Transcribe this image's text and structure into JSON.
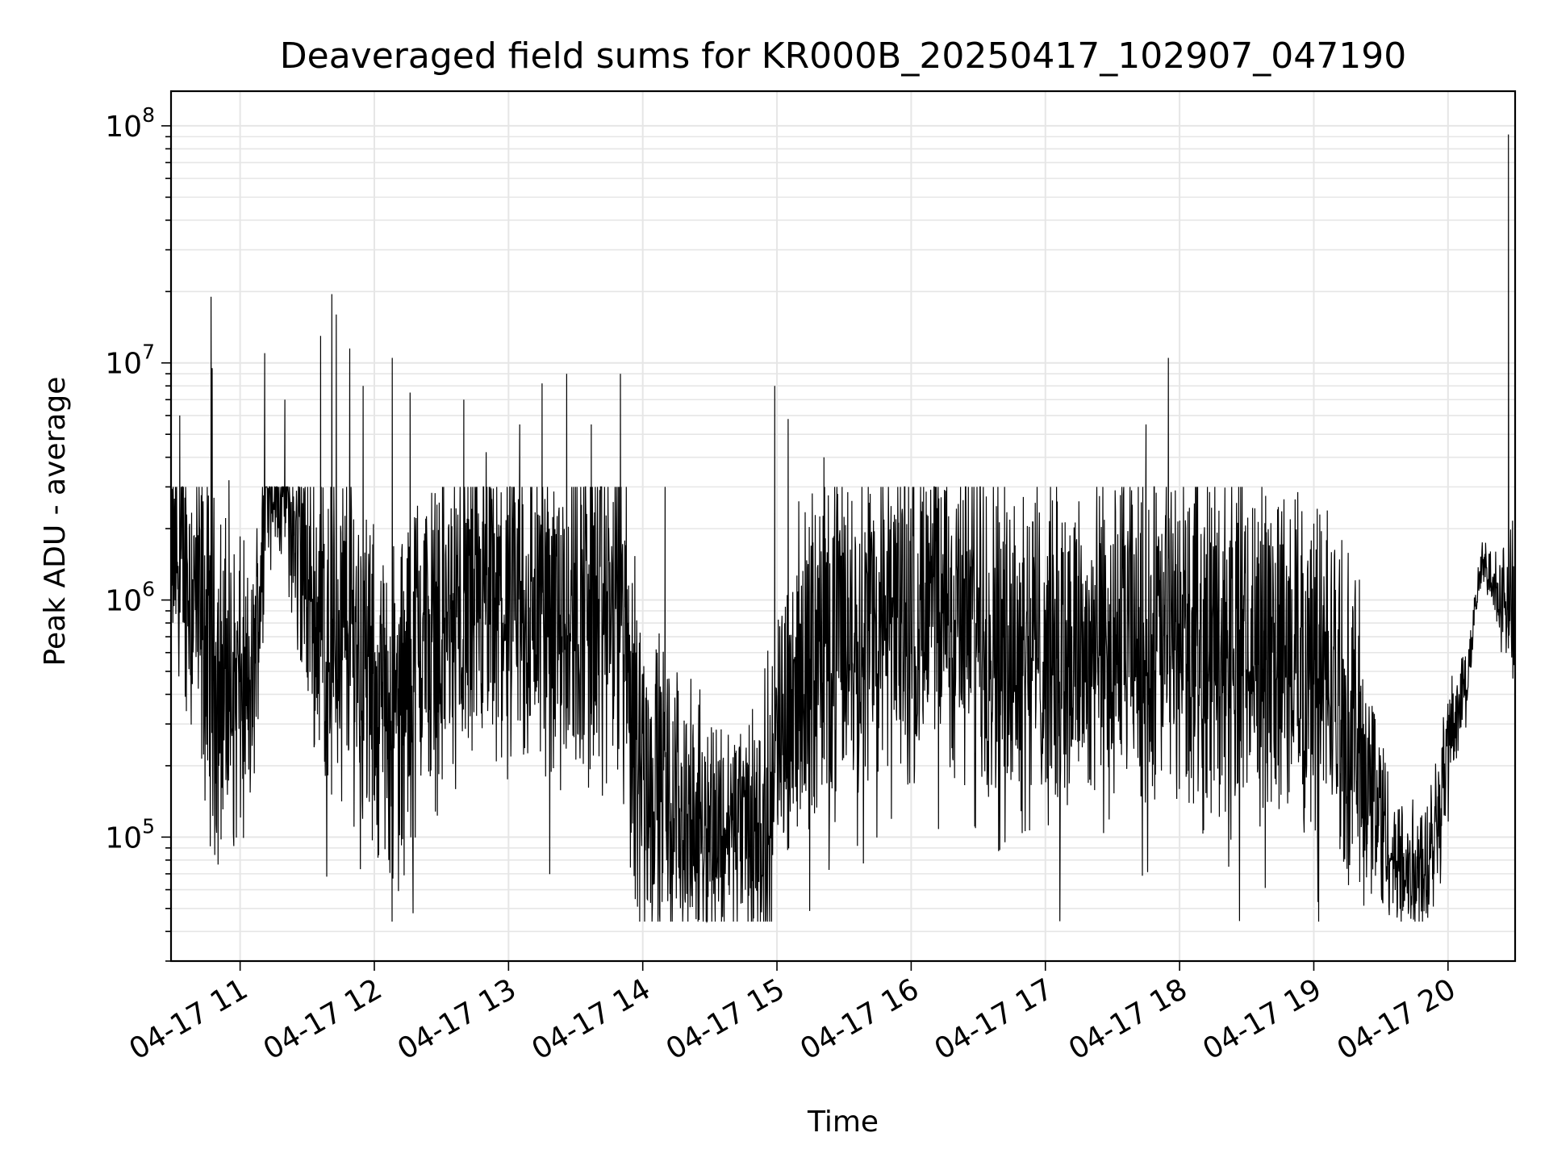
{
  "chart_data": {
    "type": "line",
    "title": "Deaveraged field sums for KR000B_20250417_102907_047190",
    "xlabel": "Time",
    "ylabel": "Peak ADU - average",
    "x_scale": "time",
    "y_scale": "log",
    "xlim": [
      "2025-04-17T10:29:07",
      "2025-04-17T20:30:00"
    ],
    "ylim": [
      30000,
      140000000
    ],
    "x_ticks": [
      {
        "value": "2025-04-17T11:00:00",
        "label": "04-17 11"
      },
      {
        "value": "2025-04-17T12:00:00",
        "label": "04-17 12"
      },
      {
        "value": "2025-04-17T13:00:00",
        "label": "04-17 13"
      },
      {
        "value": "2025-04-17T14:00:00",
        "label": "04-17 14"
      },
      {
        "value": "2025-04-17T15:00:00",
        "label": "04-17 15"
      },
      {
        "value": "2025-04-17T16:00:00",
        "label": "04-17 16"
      },
      {
        "value": "2025-04-17T17:00:00",
        "label": "04-17 17"
      },
      {
        "value": "2025-04-17T18:00:00",
        "label": "04-17 18"
      },
      {
        "value": "2025-04-17T19:00:00",
        "label": "04-17 19"
      },
      {
        "value": "2025-04-17T20:00:00",
        "label": "04-17 20"
      }
    ],
    "y_ticks": [
      {
        "value": 100000,
        "base": "10",
        "exp": "5"
      },
      {
        "value": 1000000,
        "base": "10",
        "exp": "6"
      },
      {
        "value": 10000000,
        "base": "10",
        "exp": "7"
      },
      {
        "value": 100000000,
        "base": "10",
        "exp": "8"
      }
    ],
    "grid": true,
    "line_color": "#000000",
    "grid_color": "#e6e6e6",
    "series": [
      {
        "x": [
          "2025-04-17T10:29:07",
          "2025-04-17T10:35:00",
          "2025-04-17T10:42:00",
          "2025-04-17T10:50:00",
          "2025-04-17T11:00:00",
          "2025-04-17T11:05:00",
          "2025-04-17T11:12:00",
          "2025-04-17T11:20:00",
          "2025-04-17T11:30:00",
          "2025-04-17T11:40:00",
          "2025-04-17T11:50:00",
          "2025-04-17T12:00:00",
          "2025-04-17T12:10:00",
          "2025-04-17T12:20:00",
          "2025-04-17T12:30:00",
          "2025-04-17T13:00:00",
          "2025-04-17T13:30:00",
          "2025-04-17T13:50:00",
          "2025-04-17T14:00:00",
          "2025-04-17T14:20:00",
          "2025-04-17T14:40:00",
          "2025-04-17T14:55:00",
          "2025-04-17T15:05:00",
          "2025-04-17T15:20:00",
          "2025-04-17T15:40:00",
          "2025-04-17T16:00:00",
          "2025-04-17T16:30:00",
          "2025-04-17T17:00:00",
          "2025-04-17T17:30:00",
          "2025-04-17T18:00:00",
          "2025-04-17T18:30:00",
          "2025-04-17T18:50:00",
          "2025-04-17T19:05:00",
          "2025-04-17T19:20:00",
          "2025-04-17T19:35:00",
          "2025-04-17T19:45:00",
          "2025-04-17T19:52:00",
          "2025-04-17T20:00:00",
          "2025-04-17T20:08:00",
          "2025-04-17T20:15:00",
          "2025-04-17T20:22:00",
          "2025-04-17T20:30:00"
        ],
        "base": [
          1500000,
          1500000,
          800000,
          450000,
          400000,
          350000,
          3500000,
          2800000,
          1200000,
          700000,
          800000,
          400000,
          300000,
          700000,
          800000,
          950000,
          950000,
          900000,
          200000,
          120000,
          110000,
          120000,
          400000,
          700000,
          850000,
          900000,
          900000,
          600000,
          650000,
          700000,
          700000,
          650000,
          500000,
          250000,
          80000,
          70000,
          90000,
          250000,
          450000,
          1400000,
          1200000,
          900000
        ],
        "spread": [
          0.6,
          0.9,
          1.1,
          1.1,
          1.0,
          0.8,
          0.4,
          0.5,
          0.9,
          1.1,
          1.1,
          1.0,
          1.1,
          1.1,
          1.1,
          1.1,
          1.2,
          1.2,
          1.1,
          0.8,
          0.7,
          0.9,
          1.0,
          1.1,
          1.1,
          1.1,
          1.1,
          1.1,
          1.1,
          1.1,
          1.1,
          1.1,
          1.1,
          1.0,
          0.45,
          0.45,
          0.5,
          0.4,
          0.2,
          0.15,
          0.3,
          0.5
        ]
      }
    ],
    "spikes": [
      {
        "x": "2025-04-17T10:33:00",
        "y": 6000000
      },
      {
        "x": "2025-04-17T10:47:00",
        "y": 19000000
      },
      {
        "x": "2025-04-17T10:47:30",
        "y": 9500000
      },
      {
        "x": "2025-04-17T10:55:00",
        "y": 3200000
      },
      {
        "x": "2025-04-17T11:11:00",
        "y": 11000000
      },
      {
        "x": "2025-04-17T11:20:00",
        "y": 7000000
      },
      {
        "x": "2025-04-17T11:36:00",
        "y": 13000000
      },
      {
        "x": "2025-04-17T11:41:00",
        "y": 19500000
      },
      {
        "x": "2025-04-17T11:43:00",
        "y": 16000000
      },
      {
        "x": "2025-04-17T11:49:00",
        "y": 11500000
      },
      {
        "x": "2025-04-17T11:55:00",
        "y": 8000000
      },
      {
        "x": "2025-04-17T12:08:00",
        "y": 10500000
      },
      {
        "x": "2025-04-17T12:16:00",
        "y": 7500000
      },
      {
        "x": "2025-04-17T12:40:00",
        "y": 7000000
      },
      {
        "x": "2025-04-17T12:50:00",
        "y": 4200000
      },
      {
        "x": "2025-04-17T13:05:00",
        "y": 5500000
      },
      {
        "x": "2025-04-17T13:15:00",
        "y": 8200000
      },
      {
        "x": "2025-04-17T13:26:00",
        "y": 9000000
      },
      {
        "x": "2025-04-17T13:37:00",
        "y": 5500000
      },
      {
        "x": "2025-04-17T13:50:00",
        "y": 9000000
      },
      {
        "x": "2025-04-17T14:10:00",
        "y": 3000000
      },
      {
        "x": "2025-04-17T14:59:00",
        "y": 8000000
      },
      {
        "x": "2025-04-17T15:05:00",
        "y": 5800000
      },
      {
        "x": "2025-04-17T15:21:00",
        "y": 4000000
      },
      {
        "x": "2025-04-17T16:05:00",
        "y": 2600000
      },
      {
        "x": "2025-04-17T17:45:00",
        "y": 5500000
      },
      {
        "x": "2025-04-17T17:55:00",
        "y": 10500000
      },
      {
        "x": "2025-04-17T19:00:00",
        "y": 2100000
      },
      {
        "x": "2025-04-17T20:27:00",
        "y": 92000000
      }
    ]
  }
}
